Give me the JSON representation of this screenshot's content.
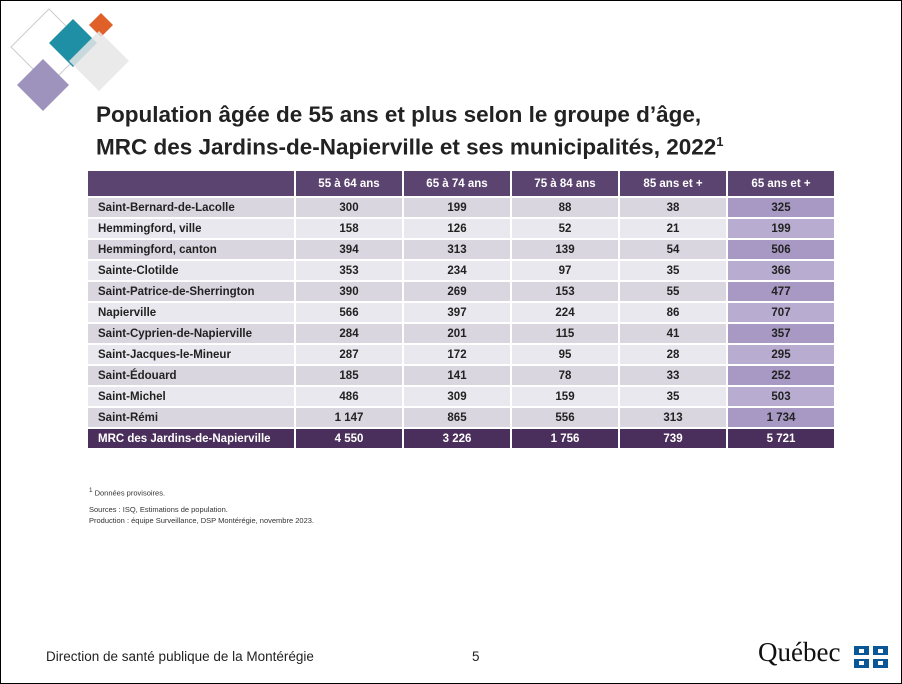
{
  "title": {
    "lines": [
      "Population âgée de 55 ans et plus selon le groupe d’âge,",
      "MRC des Jardins-de-Napierville et ses municipalités, 2022"
    ],
    "superscript": "1"
  },
  "table": {
    "header": [
      "55 à 64 ans",
      "65 à 74 ans",
      "75 à 84 ans",
      "85 ans et +",
      "65 ans et +"
    ],
    "rows": [
      [
        "Saint-Bernard-de-Lacolle",
        "300",
        "199",
        "88",
        "38",
        "325"
      ],
      [
        "Hemmingford, ville",
        "158",
        "126",
        "52",
        "21",
        "199"
      ],
      [
        "Hemmingford, canton",
        "394",
        "313",
        "139",
        "54",
        "506"
      ],
      [
        "Sainte-Clotilde",
        "353",
        "234",
        "97",
        "35",
        "366"
      ],
      [
        "Saint-Patrice-de-Sherrington",
        "390",
        "269",
        "153",
        "55",
        "477"
      ],
      [
        "Napierville",
        "566",
        "397",
        "224",
        "86",
        "707"
      ],
      [
        "Saint-Cyprien-de-Napierville",
        "284",
        "201",
        "115",
        "41",
        "357"
      ],
      [
        "Saint-Jacques-le-Mineur",
        "287",
        "172",
        "95",
        "28",
        "295"
      ],
      [
        "Saint-Édouard",
        "185",
        "141",
        "78",
        "33",
        "252"
      ],
      [
        "Saint-Michel",
        "486",
        "309",
        "159",
        "35",
        "503"
      ],
      [
        "Saint-Rémi",
        "1 147",
        "865",
        "556",
        "313",
        "1 734"
      ]
    ],
    "total": [
      "MRC des Jardins-de-Napierville",
      "4 550",
      "3 226",
      "1 756",
      "739",
      "5 721"
    ]
  },
  "notes": {
    "footnote_marker": "1",
    "footnote": "Données provisoires.",
    "sources": "Sources : ISQ, Estimations de population.",
    "production": "Production : équipe Surveillance, DSP Montérégie, novembre 2023."
  },
  "footer": {
    "organization": "Direction de santé publique de la Montérégie",
    "page": "5",
    "logo": "Québec"
  }
}
